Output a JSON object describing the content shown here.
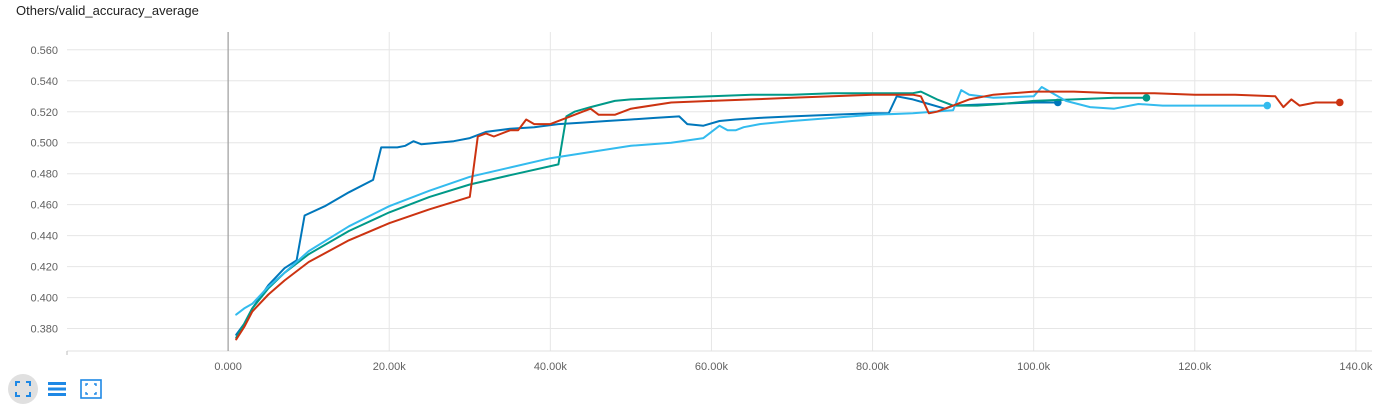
{
  "title": "Others/valid_accuracy_average",
  "colors": {
    "grid": "#e6e6e6",
    "zero_line": "#9e9e9e",
    "icon": "#1e88e5"
  },
  "toolbar": {
    "icons": [
      "fit-domain-icon",
      "toggle-log-scale-icon",
      "expand-chart-icon"
    ]
  },
  "chart_data": {
    "type": "line",
    "title": "Others/valid_accuracy_average",
    "xlabel": "",
    "ylabel": "",
    "xlim": [
      -20000,
      142000
    ],
    "ylim": [
      0.3655,
      0.5715
    ],
    "xticks": [
      0,
      20000,
      40000,
      60000,
      80000,
      100000,
      120000,
      140000
    ],
    "xtick_labels": [
      "0.000",
      "20.00k",
      "40.00k",
      "60.00k",
      "80.00k",
      "100.0k",
      "120.0k",
      "140.0k"
    ],
    "yticks": [
      0.38,
      0.4,
      0.42,
      0.44,
      0.46,
      0.48,
      0.5,
      0.52,
      0.54,
      0.56
    ],
    "ytick_labels": [
      "0.380",
      "0.400",
      "0.420",
      "0.440",
      "0.460",
      "0.480",
      "0.500",
      "0.520",
      "0.540",
      "0.560"
    ],
    "grid": true,
    "series": [
      {
        "color": "#0077bb",
        "x": [
          1000,
          2000,
          3000,
          5000,
          7000,
          8500,
          9500,
          12000,
          15000,
          18000,
          19000,
          21000,
          22000,
          23000,
          24000,
          26000,
          28000,
          30000,
          32000,
          35000,
          38000,
          41000,
          44000,
          47000,
          50000,
          53000,
          56000,
          57000,
          59000,
          61000,
          63000,
          66000,
          70000,
          75000,
          80000,
          82000,
          83000,
          85000,
          87000,
          89000,
          90000,
          95000,
          100000,
          103000
        ],
        "y": [
          0.376,
          0.383,
          0.393,
          0.408,
          0.419,
          0.424,
          0.453,
          0.459,
          0.468,
          0.476,
          0.497,
          0.497,
          0.498,
          0.501,
          0.499,
          0.5,
          0.501,
          0.503,
          0.507,
          0.509,
          0.51,
          0.512,
          0.513,
          0.514,
          0.515,
          0.516,
          0.517,
          0.512,
          0.511,
          0.514,
          0.515,
          0.516,
          0.517,
          0.518,
          0.519,
          0.519,
          0.53,
          0.528,
          0.525,
          0.522,
          0.524,
          0.525,
          0.526,
          0.526
        ],
        "end_marker": true
      },
      {
        "color": "#009988",
        "x": [
          1000,
          2000,
          3000,
          5000,
          7000,
          10000,
          15000,
          20000,
          25000,
          30000,
          35000,
          41000,
          42000,
          43000,
          45000,
          48000,
          50000,
          55000,
          60000,
          65000,
          70000,
          75000,
          80000,
          85000,
          86000,
          88000,
          90000,
          93000,
          96000,
          100000,
          105000,
          110000,
          114000
        ],
        "y": [
          0.374,
          0.383,
          0.393,
          0.406,
          0.416,
          0.428,
          0.443,
          0.455,
          0.465,
          0.473,
          0.479,
          0.486,
          0.517,
          0.52,
          0.523,
          0.527,
          0.528,
          0.529,
          0.53,
          0.531,
          0.531,
          0.532,
          0.532,
          0.532,
          0.533,
          0.528,
          0.524,
          0.524,
          0.525,
          0.527,
          0.528,
          0.529,
          0.529
        ],
        "end_marker": true
      },
      {
        "color": "#33bbee",
        "x": [
          1000,
          2000,
          3000,
          5000,
          7000,
          10000,
          15000,
          20000,
          25000,
          30000,
          35000,
          40000,
          45000,
          50000,
          55000,
          59000,
          61000,
          62000,
          63000,
          64000,
          66000,
          70000,
          75000,
          80000,
          85000,
          90000,
          91000,
          92000,
          95000,
          100000,
          101000,
          104000,
          107000,
          110000,
          113000,
          116000,
          120000,
          125000,
          129000
        ],
        "y": [
          0.389,
          0.393,
          0.396,
          0.407,
          0.416,
          0.43,
          0.446,
          0.459,
          0.469,
          0.478,
          0.484,
          0.49,
          0.494,
          0.498,
          0.5,
          0.503,
          0.511,
          0.508,
          0.508,
          0.51,
          0.512,
          0.514,
          0.516,
          0.518,
          0.519,
          0.521,
          0.534,
          0.531,
          0.529,
          0.53,
          0.536,
          0.527,
          0.523,
          0.522,
          0.525,
          0.524,
          0.524,
          0.524,
          0.524
        ],
        "end_marker": true
      },
      {
        "color": "#cc3311",
        "x": [
          1000,
          2000,
          3000,
          5000,
          7000,
          10000,
          15000,
          20000,
          25000,
          30000,
          31000,
          32000,
          33000,
          35000,
          36000,
          37000,
          38000,
          40000,
          42000,
          44000,
          45000,
          46000,
          48000,
          50000,
          55000,
          60000,
          65000,
          70000,
          75000,
          80000,
          85000,
          86000,
          87000,
          88000,
          90000,
          92000,
          95000,
          100000,
          105000,
          110000,
          115000,
          120000,
          125000,
          130000,
          131000,
          132000,
          133000,
          135000,
          138000
        ],
        "y": [
          0.373,
          0.381,
          0.391,
          0.402,
          0.411,
          0.423,
          0.437,
          0.448,
          0.457,
          0.465,
          0.504,
          0.506,
          0.504,
          0.508,
          0.508,
          0.515,
          0.512,
          0.512,
          0.516,
          0.52,
          0.522,
          0.518,
          0.518,
          0.522,
          0.526,
          0.527,
          0.528,
          0.529,
          0.53,
          0.531,
          0.531,
          0.53,
          0.519,
          0.52,
          0.524,
          0.528,
          0.531,
          0.533,
          0.533,
          0.532,
          0.532,
          0.531,
          0.531,
          0.53,
          0.523,
          0.528,
          0.524,
          0.526,
          0.526
        ],
        "end_marker": true
      }
    ]
  }
}
